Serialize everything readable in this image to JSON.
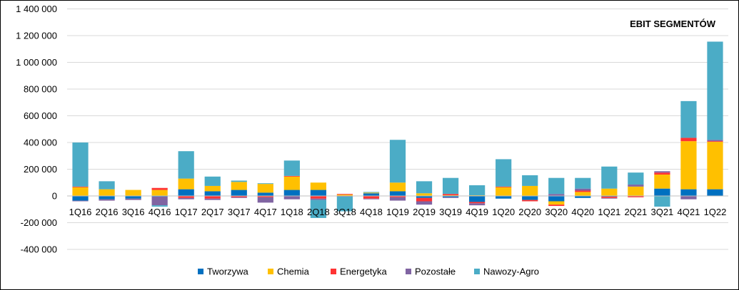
{
  "chart_data": {
    "type": "bar",
    "stacked": true,
    "title": "EBIT SEGMENTÓW",
    "xlabel": "",
    "ylabel": "",
    "ylim": [
      -400000,
      1400000
    ],
    "yticks": [
      -400000,
      -200000,
      0,
      200000,
      400000,
      600000,
      800000,
      1000000,
      1200000,
      1400000
    ],
    "ytick_labels": [
      "-400 000",
      "-200 000",
      "0",
      "200 000",
      "400 000",
      "600 000",
      "800 000",
      "1 000 000",
      "1 200 000",
      "1 400 000"
    ],
    "grid": true,
    "legend_position": "bottom",
    "categories": [
      "1Q16",
      "2Q16",
      "3Q16",
      "4Q16",
      "1Q17",
      "2Q17",
      "3Q17",
      "4Q17",
      "1Q18",
      "2Q18",
      "3Q18",
      "4Q18",
      "1Q19",
      "2Q19",
      "3Q19",
      "4Q19",
      "1Q20",
      "2Q20",
      "3Q20",
      "4Q20",
      "1Q21",
      "2Q21",
      "3Q21",
      "4Q21",
      "1Q22"
    ],
    "series": [
      {
        "name": "Tworzywa",
        "color": "#0070c0",
        "values": [
          -35000,
          -25000,
          -20000,
          -5000,
          50000,
          35000,
          45000,
          25000,
          45000,
          45000,
          0,
          20000,
          35000,
          -15000,
          -10000,
          -45000,
          -20000,
          -30000,
          -40000,
          -15000,
          -5000,
          0,
          55000,
          50000,
          50000
        ]
      },
      {
        "name": "Chemia",
        "color": "#ffc000",
        "values": [
          65000,
          50000,
          45000,
          45000,
          80000,
          40000,
          60000,
          65000,
          100000,
          55000,
          10000,
          5000,
          65000,
          20000,
          5000,
          5000,
          65000,
          75000,
          -25000,
          30000,
          55000,
          70000,
          105000,
          360000,
          355000
        ]
      },
      {
        "name": "Energetyka",
        "color": "#ff3333",
        "values": [
          5000,
          0,
          0,
          15000,
          -15000,
          -20000,
          -10000,
          -10000,
          5000,
          -20000,
          5000,
          -20000,
          -10000,
          -25000,
          10000,
          -10000,
          5000,
          -10000,
          -10000,
          10000,
          -10000,
          -10000,
          15000,
          25000,
          5000
        ]
      },
      {
        "name": "Pozostałe",
        "color": "#8064a2",
        "values": [
          -5000,
          -10000,
          -10000,
          -65000,
          -10000,
          -10000,
          -5000,
          -40000,
          -25000,
          -10000,
          -5000,
          -5000,
          -25000,
          -25000,
          -5000,
          -15000,
          0,
          0,
          15000,
          15000,
          -5000,
          15000,
          10000,
          -25000,
          10000
        ]
      },
      {
        "name": "Nawozy-Agro",
        "color": "#4bacc6",
        "values": [
          330000,
          60000,
          0,
          -10000,
          205000,
          70000,
          10000,
          5000,
          115000,
          -135000,
          -110000,
          5000,
          320000,
          90000,
          120000,
          75000,
          205000,
          80000,
          120000,
          80000,
          165000,
          90000,
          -80000,
          275000,
          735000
        ]
      }
    ]
  }
}
